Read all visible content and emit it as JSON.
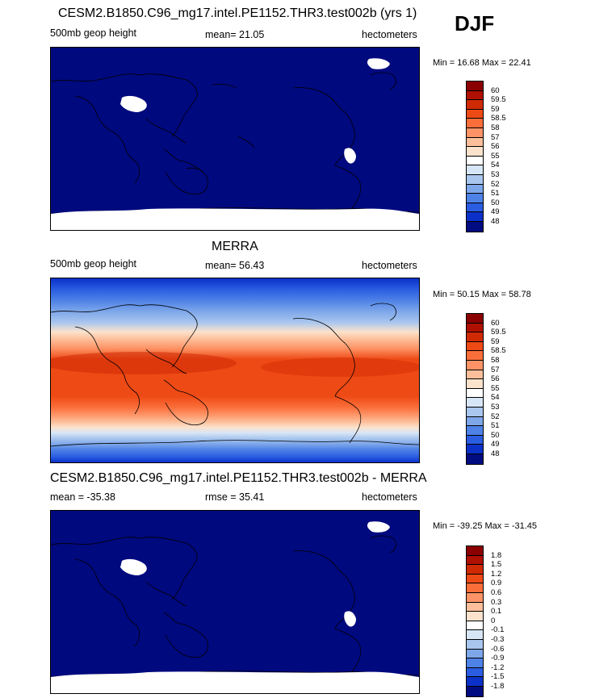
{
  "season": "DJF",
  "panels": [
    {
      "title": "CESM2.B1850.C96_mg17.intel.PE1152.THR3.test002b (yrs 1)",
      "left": "500mb geop height",
      "center": "mean=  21.05",
      "right": "hectometers",
      "minmax": "Min =  16.68 Max =  22.41",
      "colorbar": {
        "labels": [
          "60",
          "59.5",
          "59",
          "58.5",
          "58",
          "57",
          "56",
          "55",
          "54",
          "53",
          "52",
          "51",
          "50",
          "49",
          "48"
        ],
        "colors": [
          "#8b0000",
          "#b01000",
          "#d02a05",
          "#ee4a15",
          "#fa6e3a",
          "#fd9366",
          "#fdbf9b",
          "#fbe2cc",
          "#ffffff",
          "#d7e6f6",
          "#a9c6ee",
          "#7ea7ea",
          "#4f82e6",
          "#2a5de2",
          "#0b31c8",
          "#000c80"
        ]
      }
    },
    {
      "title": "MERRA",
      "left": "500mb geop height",
      "center": "mean=  56.43",
      "right": "hectometers",
      "minmax": "Min =  50.15 Max =  58.78",
      "colorbar": {
        "labels": [
          "60",
          "59.5",
          "59",
          "58.5",
          "58",
          "57",
          "56",
          "55",
          "54",
          "53",
          "52",
          "51",
          "50",
          "49",
          "48"
        ],
        "colors": [
          "#8b0000",
          "#b01000",
          "#d02a05",
          "#ee4a15",
          "#fa6e3a",
          "#fd9366",
          "#fdbf9b",
          "#fbe2cc",
          "#ffffff",
          "#d7e6f6",
          "#a9c6ee",
          "#7ea7ea",
          "#4f82e6",
          "#2a5de2",
          "#0b31c8",
          "#000c80"
        ]
      }
    },
    {
      "title": "CESM2.B1850.C96_mg17.intel.PE1152.THR3.test002b - MERRA",
      "left": "mean = -35.38",
      "center": "rmse =  35.41",
      "right": "hectometers",
      "minmax": "Min = -39.25 Max = -31.45",
      "colorbar": {
        "labels": [
          "1.8",
          "1.5",
          "1.2",
          "0.9",
          "0.6",
          "0.3",
          "0.1",
          "0",
          "-0.1",
          "-0.3",
          "-0.6",
          "-0.9",
          "-1.2",
          "-1.5",
          "-1.8"
        ],
        "colors": [
          "#8b0000",
          "#b01000",
          "#d02a05",
          "#ee4a15",
          "#fa6e3a",
          "#fd9366",
          "#fdbf9b",
          "#fbe2cc",
          "#ffffff",
          "#d7e6f6",
          "#a9c6ee",
          "#7ea7ea",
          "#4f82e6",
          "#2a5de2",
          "#0b31c8",
          "#000c80"
        ]
      }
    }
  ],
  "colors": {
    "deep_blue": "#00097e",
    "missing": "#ffffff",
    "coast": "#000000"
  }
}
